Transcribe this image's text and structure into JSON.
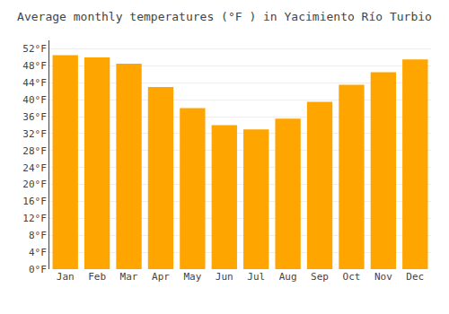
{
  "chart_data": {
    "type": "bar",
    "title": "Average monthly temperatures (°F ) in Yacimiento Río Turbio",
    "categories": [
      "Jan",
      "Feb",
      "Mar",
      "Apr",
      "May",
      "Jun",
      "Jul",
      "Aug",
      "Sep",
      "Oct",
      "Nov",
      "Dec"
    ],
    "values": [
      50.5,
      50.0,
      48.5,
      43.0,
      38.0,
      34.0,
      33.0,
      35.5,
      39.5,
      43.5,
      46.5,
      49.5
    ],
    "color": "#FFA500",
    "ylim": [
      0,
      54
    ],
    "yticks": [
      {
        "value": 0,
        "label": "0°F"
      },
      {
        "value": 4,
        "label": "4°F"
      },
      {
        "value": 8,
        "label": "8°F"
      },
      {
        "value": 12,
        "label": "12°F"
      },
      {
        "value": 16,
        "label": "16°F"
      },
      {
        "value": 20,
        "label": "20°F"
      },
      {
        "value": 24,
        "label": "24°F"
      },
      {
        "value": 28,
        "label": "28°F"
      },
      {
        "value": 32,
        "label": "32°F"
      },
      {
        "value": 36,
        "label": "36°F"
      },
      {
        "value": 40,
        "label": "40°F"
      },
      {
        "value": 44,
        "label": "44°F"
      },
      {
        "value": 48,
        "label": "48°F"
      },
      {
        "value": 52,
        "label": "52°F"
      }
    ],
    "grid": true
  }
}
